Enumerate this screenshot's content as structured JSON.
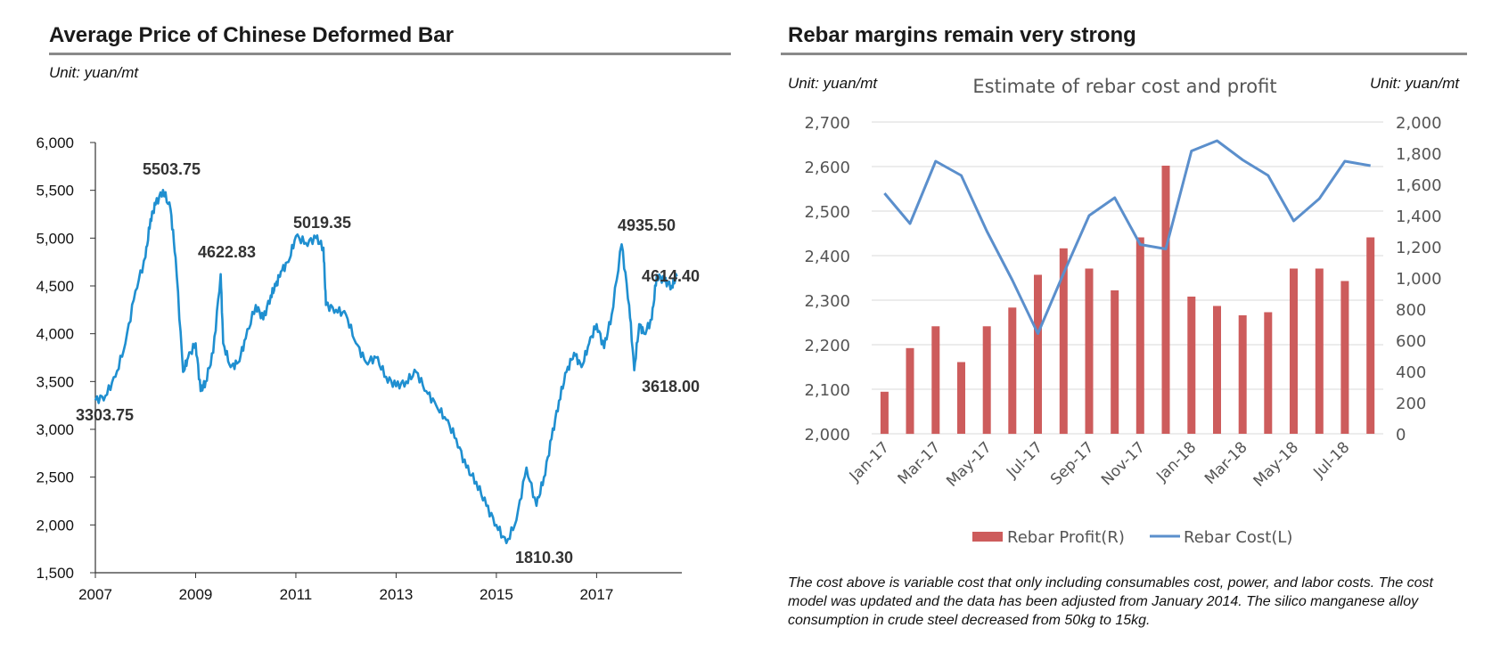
{
  "left_panel": {
    "title": "Average Price of Chinese Deformed Bar",
    "unit": "Unit: yuan/mt"
  },
  "right_panel": {
    "title": "Rebar margins remain very strong",
    "unit_left": "Unit: yuan/mt",
    "unit_right": "Unit: yuan/mt",
    "note": "The cost above is variable cost that only including consumables cost, power, and labor costs. The cost model was updated and the data has been adjusted from January 2014. The silico manganese alloy consumption in crude steel decreased from 50kg to 15kg."
  },
  "colors": {
    "line_left": "#1f8fd0",
    "bar": "#cd5c5c",
    "line_right": "#5b8fcc",
    "axis": "#333333",
    "grid": "#d9d9d9"
  },
  "chart_data": [
    {
      "type": "line",
      "title": "Average Price of Chinese Deformed Bar",
      "xlabel": "",
      "ylabel": "",
      "xlim": [
        2007,
        2018.7
      ],
      "ylim": [
        1500,
        6000
      ],
      "xticks": [
        2007,
        2009,
        2011,
        2013,
        2015,
        2017
      ],
      "yticks": [
        1500,
        2000,
        2500,
        3000,
        3500,
        4000,
        4500,
        5000,
        5500,
        6000
      ],
      "ytick_labels": [
        "1,500",
        "2,000",
        "2,500",
        "3,000",
        "3,500",
        "4,000",
        "4,500",
        "5,000",
        "5,500",
        "6,000"
      ],
      "series": [
        {
          "name": "Average Price",
          "x": [
            2007.0,
            2007.2,
            2007.4,
            2007.6,
            2007.8,
            2008.0,
            2008.1,
            2008.2,
            2008.35,
            2008.5,
            2008.6,
            2008.75,
            2008.85,
            2009.0,
            2009.1,
            2009.2,
            2009.35,
            2009.5,
            2009.55,
            2009.7,
            2009.85,
            2010.0,
            2010.2,
            2010.35,
            2010.5,
            2010.6,
            2010.7,
            2010.85,
            2011.0,
            2011.2,
            2011.4,
            2011.55,
            2011.6,
            2011.8,
            2012.0,
            2012.2,
            2012.4,
            2012.6,
            2012.8,
            2013.0,
            2013.2,
            2013.4,
            2013.6,
            2013.8,
            2014.0,
            2014.2,
            2014.4,
            2014.6,
            2014.8,
            2015.0,
            2015.2,
            2015.4,
            2015.6,
            2015.8,
            2015.95,
            2016.1,
            2016.25,
            2016.4,
            2016.55,
            2016.7,
            2016.85,
            2017.0,
            2017.15,
            2017.3,
            2017.5,
            2017.65,
            2017.75,
            2017.85,
            2017.95,
            2018.1,
            2018.2,
            2018.35,
            2018.5,
            2018.6
          ],
          "values": [
            3303.75,
            3350,
            3550,
            3900,
            4450,
            4800,
            5200,
            5350,
            5503.75,
            5300,
            4800,
            3600,
            3750,
            3900,
            3400,
            3500,
            3800,
            4622.83,
            3900,
            3650,
            3700,
            3950,
            4300,
            4150,
            4400,
            4500,
            4650,
            4750,
            5019.35,
            4950,
            5000,
            4900,
            4300,
            4250,
            4200,
            3900,
            3700,
            3750,
            3550,
            3450,
            3500,
            3600,
            3400,
            3250,
            3100,
            2900,
            2600,
            2450,
            2200,
            2000,
            1810.3,
            2050,
            2600,
            2200,
            2500,
            2900,
            3300,
            3600,
            3800,
            3650,
            3900,
            4100,
            3850,
            4200,
            4935.5,
            4300,
            3618.0,
            4100,
            4000,
            4150,
            4614.4,
            4550,
            4500,
            4600
          ]
        }
      ],
      "annotations": [
        "3303.75",
        "5503.75",
        "4622.83",
        "5019.35",
        "1810.30",
        "4935.50",
        "4614.40",
        "3618.00"
      ]
    },
    {
      "type": "bar",
      "title": "Estimate of rebar cost and profit",
      "categories": [
        "Jan-17",
        "Feb-17",
        "Mar-17",
        "Apr-17",
        "May-17",
        "Jun-17",
        "Jul-17",
        "Aug-17",
        "Sep-17",
        "Oct-17",
        "Nov-17",
        "Dec-17",
        "Jan-18",
        "Feb-18",
        "Mar-18",
        "Apr-18",
        "May-18",
        "Jun-18",
        "Jul-18",
        "Aug-18"
      ],
      "xtick_labels": [
        "Jan-17",
        "Mar-17",
        "May-17",
        "Jul-17",
        "Sep-17",
        "Nov-17",
        "Jan-18",
        "Mar-18",
        "May-18",
        "Jul-18"
      ],
      "ylim_left": [
        2000,
        2700
      ],
      "ylim_right": [
        0,
        2000
      ],
      "yticks_left": [
        "2,000",
        "2,100",
        "2,200",
        "2,300",
        "2,400",
        "2,500",
        "2,600",
        "2,700"
      ],
      "yticks_right": [
        "0",
        "200",
        "400",
        "600",
        "800",
        "1,000",
        "1,200",
        "1,400",
        "1,600",
        "1,800",
        "2,000"
      ],
      "series": [
        {
          "name": "Rebar Profit(R)",
          "type": "bar",
          "axis": "right",
          "values": [
            270,
            550,
            690,
            460,
            690,
            810,
            1020,
            1190,
            1060,
            920,
            1260,
            1720,
            880,
            820,
            760,
            780,
            1060,
            1060,
            980,
            1260
          ]
        },
        {
          "name": "Rebar Cost(L)",
          "type": "line",
          "axis": "left",
          "values": [
            2540,
            2472,
            2612,
            2580,
            2455,
            2345,
            2225,
            2360,
            2490,
            2530,
            2425,
            2415,
            2635,
            2658,
            2615,
            2580,
            2478,
            2528,
            2612,
            2602
          ]
        }
      ]
    }
  ]
}
